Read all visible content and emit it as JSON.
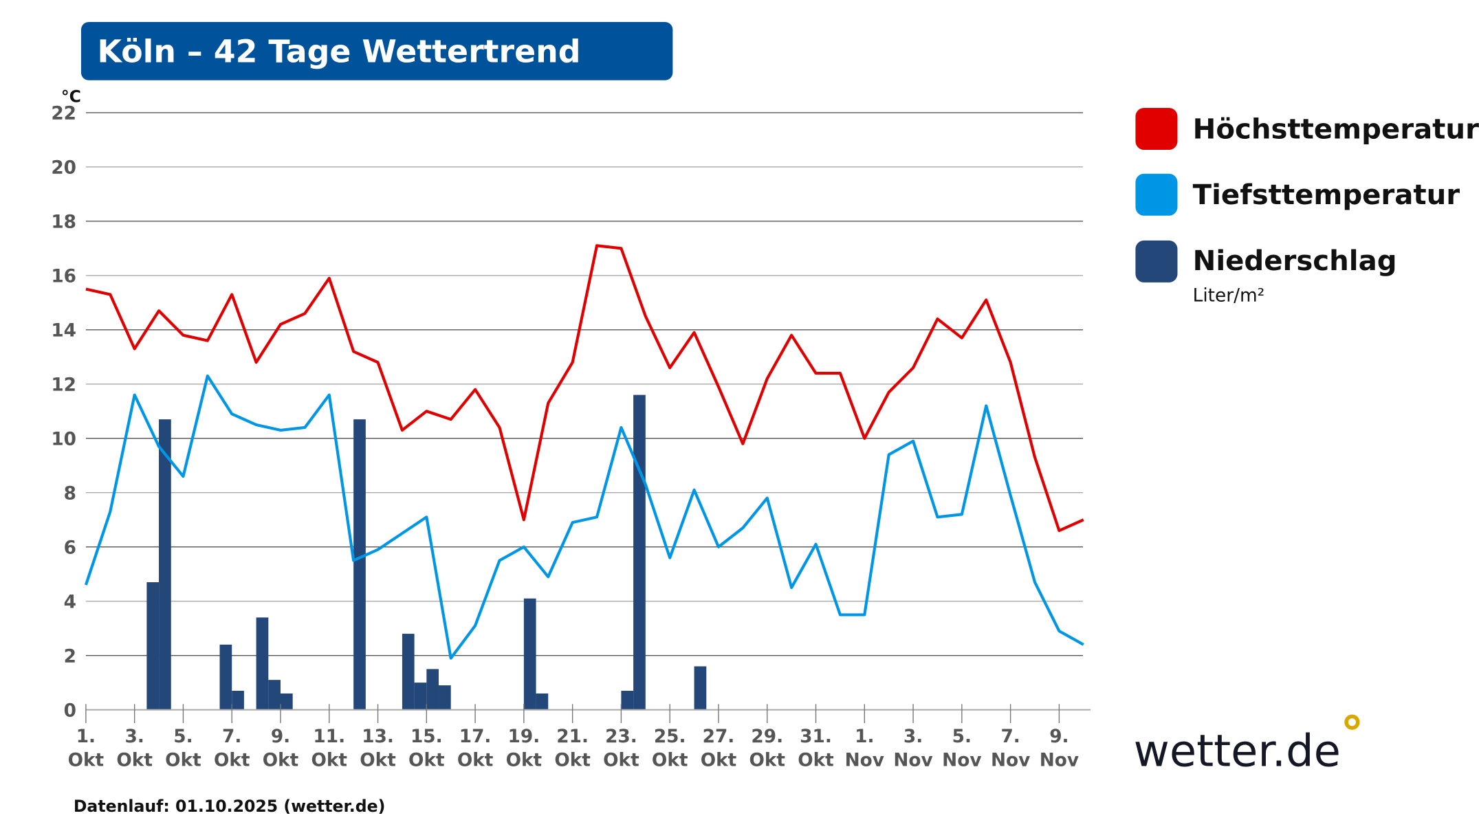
{
  "title": "Köln – 42 Tage Wettertrend",
  "footer": "Datenlauf: 01.10.2025 (wetter.de)",
  "logo": {
    "text": "wetter.de",
    "dot_color": "#d9a800"
  },
  "colors": {
    "title_bg": "#00529b",
    "high": "#e00000",
    "low": "#0096e6",
    "precip": "#24477a"
  },
  "chart_data": {
    "type": "line",
    "yunit": "°C",
    "ylim": [
      0,
      22
    ],
    "yticks": [
      "0",
      "2",
      "4",
      "6",
      "8",
      "10",
      "12",
      "14",
      "16",
      "18",
      "20",
      "22"
    ],
    "grid": true,
    "legend_placement": "right",
    "xtick_labels": [
      [
        "1.",
        "Okt"
      ],
      [
        "3.",
        "Okt"
      ],
      [
        "5.",
        "Okt"
      ],
      [
        "7.",
        "Okt"
      ],
      [
        "9.",
        "Okt"
      ],
      [
        "11.",
        "Okt"
      ],
      [
        "13.",
        "Okt"
      ],
      [
        "15.",
        "Okt"
      ],
      [
        "17.",
        "Okt"
      ],
      [
        "19.",
        "Okt"
      ],
      [
        "21.",
        "Okt"
      ],
      [
        "23.",
        "Okt"
      ],
      [
        "25.",
        "Okt"
      ],
      [
        "27.",
        "Okt"
      ],
      [
        "29.",
        "Okt"
      ],
      [
        "31.",
        "Okt"
      ],
      [
        "1.",
        "Nov"
      ],
      [
        "3.",
        "Nov"
      ],
      [
        "5.",
        "Nov"
      ],
      [
        "7.",
        "Nov"
      ],
      [
        "9.",
        "Nov"
      ]
    ],
    "series": [
      {
        "name": "Höchsttemperatur",
        "type": "line",
        "color": "#e00000",
        "values": [
          15.5,
          15.3,
          13.3,
          14.7,
          13.8,
          13.6,
          15.3,
          12.8,
          14.2,
          14.6,
          15.9,
          13.2,
          12.8,
          10.3,
          11.0,
          10.7,
          11.8,
          10.4,
          7.0,
          11.3,
          12.8,
          17.1,
          17.0,
          14.5,
          12.6,
          13.9,
          11.9,
          9.8,
          12.2,
          13.8,
          12.4,
          12.4,
          10.0,
          11.7,
          12.6,
          14.4,
          13.7,
          15.1,
          12.8,
          9.3,
          6.6,
          7.0
        ]
      },
      {
        "name": "Tiefsttemperatur",
        "type": "line",
        "color": "#0096e6",
        "values": [
          4.6,
          7.3,
          11.6,
          9.7,
          8.6,
          12.3,
          10.9,
          10.5,
          10.3,
          10.4,
          11.6,
          5.5,
          5.9,
          6.5,
          7.1,
          1.9,
          3.1,
          5.5,
          6.0,
          4.9,
          6.9,
          7.1,
          10.4,
          8.3,
          5.6,
          8.1,
          6.0,
          6.7,
          7.8,
          4.5,
          6.1,
          3.5,
          3.5,
          9.4,
          9.9,
          7.1,
          7.2,
          11.2,
          7.9,
          4.7,
          2.9,
          2.4
        ]
      },
      {
        "name": "Niederschlag",
        "unit": "Liter/m²",
        "type": "bar",
        "color": "#24477a",
        "values_halfday": [
          [
            0,
            0
          ],
          [
            0,
            0
          ],
          [
            0,
            4.7
          ],
          [
            10.7,
            0
          ],
          [
            0,
            0
          ],
          [
            0,
            2.4
          ],
          [
            0.7,
            0
          ],
          [
            3.4,
            1.1
          ],
          [
            0.6,
            0
          ],
          [
            0,
            0
          ],
          [
            0,
            0
          ],
          [
            10.7,
            0
          ],
          [
            0,
            0
          ],
          [
            2.8,
            1.0
          ],
          [
            1.5,
            0.9
          ],
          [
            0,
            0
          ],
          [
            0,
            0
          ],
          [
            0,
            0
          ],
          [
            4.1,
            0.6
          ],
          [
            0,
            0
          ],
          [
            0,
            0
          ],
          [
            0,
            0
          ],
          [
            0.7,
            11.6
          ],
          [
            0,
            0
          ],
          [
            0,
            0
          ],
          [
            1.6,
            0
          ],
          [
            0,
            0
          ],
          [
            0,
            0
          ],
          [
            0,
            0
          ],
          [
            0,
            0
          ],
          [
            0,
            0
          ],
          [
            0,
            0
          ],
          [
            0,
            0
          ],
          [
            0,
            0
          ],
          [
            0,
            0
          ],
          [
            0,
            0
          ],
          [
            0,
            0
          ],
          [
            0,
            0
          ],
          [
            0,
            0
          ],
          [
            0,
            0
          ],
          [
            0,
            0
          ],
          [
            0,
            0
          ]
        ]
      }
    ]
  }
}
